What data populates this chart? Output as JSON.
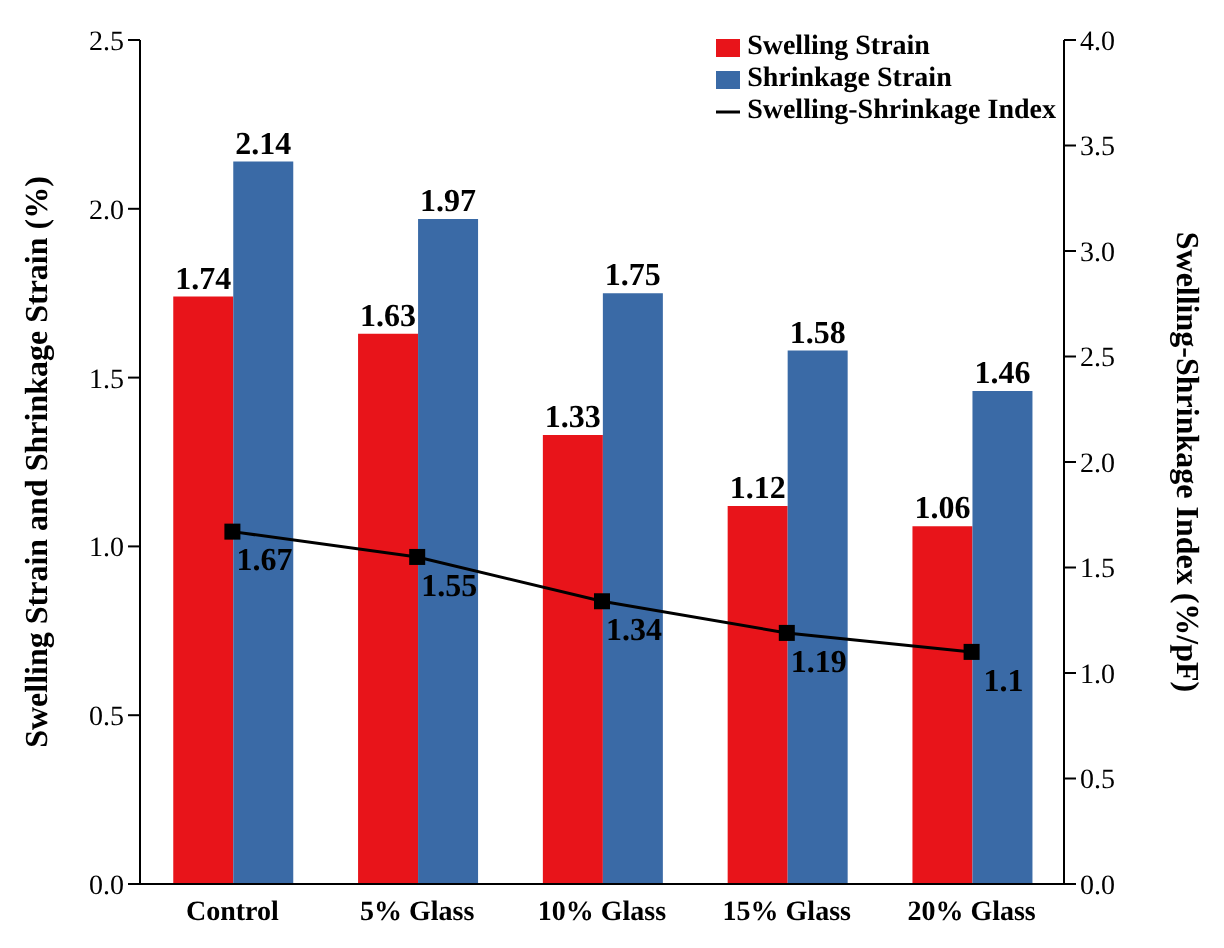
{
  "chart_data": {
    "type": "bar",
    "ylabel": "Swelling Strain and Shrinkage Strain (%)",
    "y2label": "Swelling-Shrinkage Index (%/pF)",
    "categories": [
      "Control",
      "5% Glass",
      "10% Glass",
      "15% Glass",
      "20% Glass"
    ],
    "series": [
      {
        "name": "Swelling Strain",
        "color": "#e8141a",
        "values": [
          1.74,
          1.63,
          1.33,
          1.12,
          1.06
        ]
      },
      {
        "name": "Shrinkage Strain",
        "color": "#3a6aa6",
        "values": [
          2.14,
          1.97,
          1.75,
          1.58,
          1.46
        ]
      },
      {
        "name": "Swelling-Shrinkage Index",
        "type": "line",
        "axis": "y2",
        "color": "#000000",
        "values": [
          1.67,
          1.55,
          1.34,
          1.19,
          1.1
        ],
        "marker": "square",
        "line_style": "solid"
      }
    ],
    "ylim": [
      0,
      2.5
    ],
    "yticks": [
      {
        "value": 0,
        "label": "0.0"
      },
      {
        "value": 0.5,
        "label": "0.5"
      },
      {
        "value": 1,
        "label": "1.0"
      },
      {
        "value": 1.5,
        "label": "1.5"
      },
      {
        "value": 2,
        "label": "2.0"
      },
      {
        "value": 2.5,
        "label": "2.5"
      }
    ],
    "y2lim": [
      0,
      4
    ],
    "y2ticks": [
      {
        "value": 0,
        "label": "0.0"
      },
      {
        "value": 0.5,
        "label": "0.5"
      },
      {
        "value": 1,
        "label": "1.0"
      },
      {
        "value": 1.5,
        "label": "1.5"
      },
      {
        "value": 2,
        "label": "2.0"
      },
      {
        "value": 2.5,
        "label": "2.5"
      },
      {
        "value": 3,
        "label": "3.0"
      },
      {
        "value": 3.5,
        "label": "3.5"
      },
      {
        "value": 4,
        "label": "4.0"
      }
    ],
    "data_labels": true,
    "grid": false,
    "legend": "top right"
  }
}
